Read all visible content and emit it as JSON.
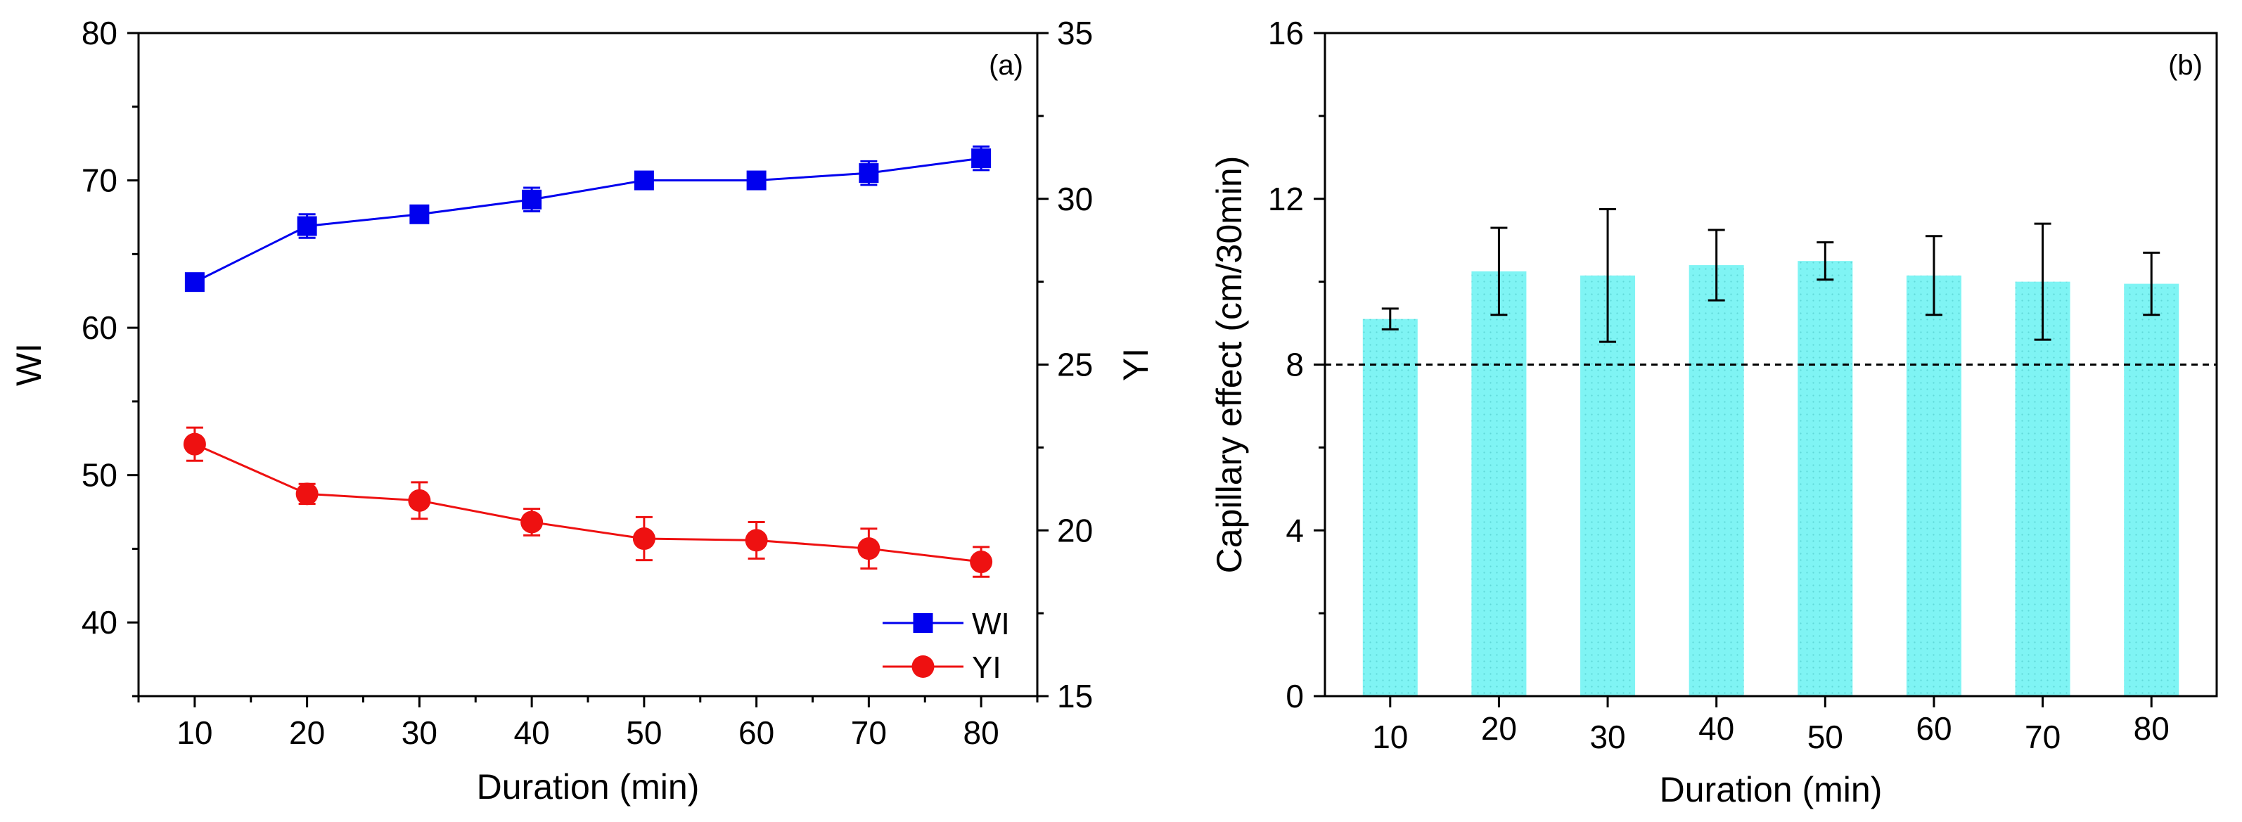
{
  "chart_data": [
    {
      "type": "line",
      "panel_label": "(a)",
      "x": [
        10,
        20,
        30,
        40,
        50,
        60,
        70,
        80
      ],
      "xlabel": "Duration (min)",
      "xticks": [
        10,
        20,
        30,
        40,
        50,
        60,
        70,
        80
      ],
      "xlim": [
        5,
        85
      ],
      "ylabel": "WI",
      "ylim": [
        35,
        80
      ],
      "yticks": [
        40,
        50,
        60,
        70,
        80
      ],
      "y2label": "YI",
      "y2lim": [
        15,
        35
      ],
      "y2ticks": [
        15,
        20,
        25,
        30,
        35
      ],
      "legend_position": "bottom-right",
      "grid": false,
      "series": [
        {
          "name": "WI",
          "axis": "left",
          "color": "#0000ee",
          "marker": "square",
          "values": [
            63.1,
            66.9,
            67.7,
            68.7,
            70.0,
            70.0,
            70.5,
            71.5
          ],
          "errors": [
            0.4,
            0.8,
            0.5,
            0.8,
            0.3,
            0.3,
            0.8,
            0.8
          ]
        },
        {
          "name": "YI",
          "axis": "right",
          "color": "#ee1111",
          "marker": "circle",
          "values": [
            22.6,
            21.1,
            20.9,
            20.25,
            19.75,
            19.7,
            19.45,
            19.05
          ],
          "errors": [
            0.5,
            0.3,
            0.55,
            0.4,
            0.65,
            0.55,
            0.6,
            0.45
          ]
        }
      ]
    },
    {
      "type": "bar",
      "panel_label": "(b)",
      "categories": [
        "10",
        "20",
        "30",
        "40",
        "50",
        "60",
        "70",
        "80"
      ],
      "values": [
        9.1,
        10.25,
        10.15,
        10.4,
        10.5,
        10.15,
        10.0,
        9.95
      ],
      "errors": [
        0.25,
        1.05,
        1.6,
        0.85,
        0.45,
        0.95,
        1.4,
        0.75
      ],
      "xlabel": "Duration (min)",
      "ylabel": "Capillary effect (cm/30min)",
      "ylim": [
        0,
        16
      ],
      "yticks": [
        0,
        4,
        8,
        12,
        16
      ],
      "reference_line": 8,
      "bar_color": "#7ff4f4",
      "grid": false
    }
  ]
}
